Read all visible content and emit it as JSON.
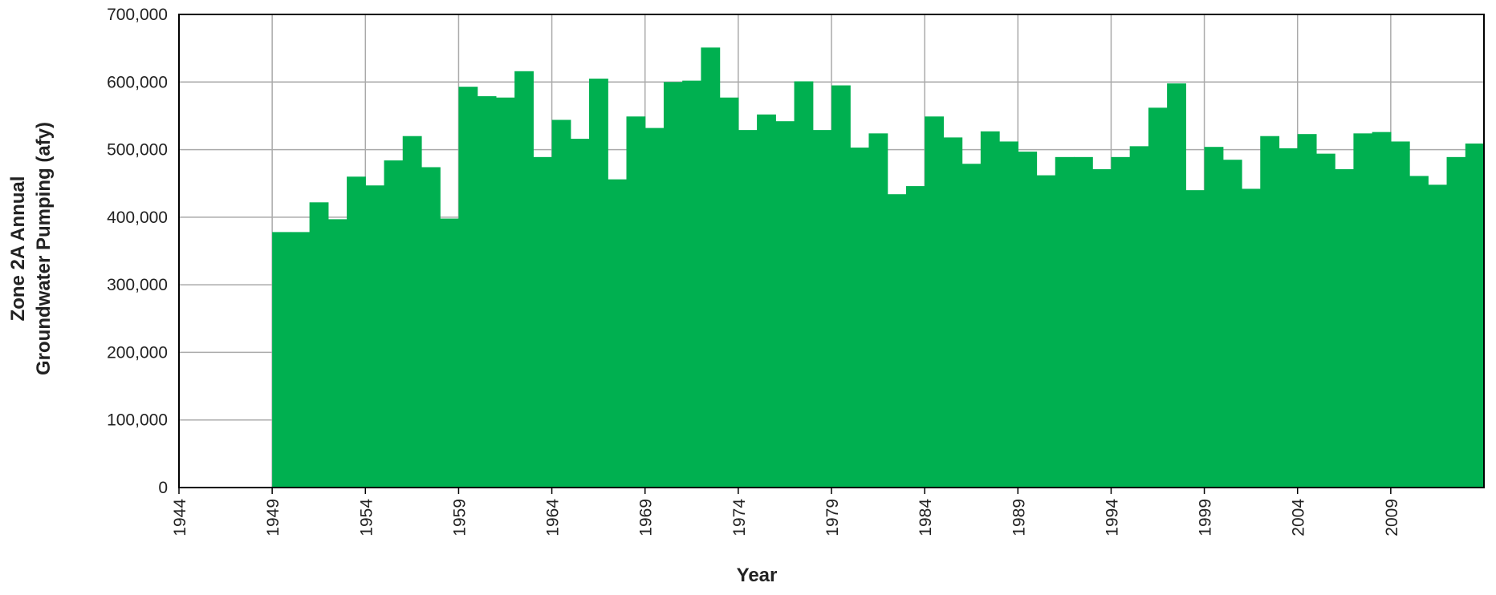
{
  "chart_data": {
    "type": "step",
    "ylabel": [
      "Zone 2A Annual",
      "Groundwater Pumping (afy)"
    ],
    "xlabel": "Year",
    "color": "#00b050",
    "grid": true,
    "x": [
      1944,
      1945,
      1946,
      1947,
      1948,
      1949,
      1950,
      1951,
      1952,
      1953,
      1954,
      1955,
      1956,
      1957,
      1958,
      1959,
      1960,
      1961,
      1962,
      1963,
      1964,
      1965,
      1966,
      1967,
      1968,
      1969,
      1970,
      1971,
      1972,
      1973,
      1974,
      1975,
      1976,
      1977,
      1978,
      1979,
      1980,
      1981,
      1982,
      1983,
      1984,
      1985,
      1986,
      1987,
      1988,
      1989,
      1990,
      1991,
      1992,
      1993,
      1994,
      1995,
      1996,
      1997,
      1998,
      1999,
      2000,
      2001,
      2002,
      2003,
      2004,
      2005,
      2006,
      2007,
      2008,
      2009,
      2010,
      2011,
      2012,
      2013
    ],
    "values": [
      0,
      0,
      0,
      0,
      0,
      378000,
      378000,
      422000,
      397000,
      460000,
      447000,
      484000,
      520000,
      474000,
      398000,
      593000,
      579000,
      577000,
      616000,
      489000,
      544000,
      516000,
      605000,
      456000,
      549000,
      532000,
      600000,
      602000,
      651000,
      577000,
      529000,
      552000,
      542000,
      601000,
      529000,
      595000,
      503000,
      524000,
      434000,
      446000,
      549000,
      518000,
      479000,
      527000,
      512000,
      497000,
      462000,
      489000,
      489000,
      471000,
      489000,
      505000,
      562000,
      598000,
      440000,
      504000,
      485000,
      442000,
      520000,
      502000,
      523000,
      494000,
      471000,
      524000,
      526000,
      512000,
      461000,
      448000,
      489000,
      509000
    ],
    "xlim": [
      1944,
      2014
    ],
    "xticks": [
      1944,
      1949,
      1954,
      1959,
      1964,
      1969,
      1974,
      1979,
      1984,
      1989,
      1994,
      1999,
      2004,
      2009
    ],
    "ylim": [
      0,
      700000
    ],
    "yticks": [
      0,
      {
        "value": 100000,
        "label": "100,000"
      },
      {
        "value": 200000,
        "label": "200,000"
      },
      {
        "value": 300000,
        "label": "300,000"
      },
      {
        "value": 400000,
        "label": "400,000"
      },
      {
        "value": 500000,
        "label": "500,000"
      },
      {
        "value": 600000,
        "label": "600,000"
      },
      {
        "value": 700000,
        "label": "700,000"
      }
    ]
  }
}
